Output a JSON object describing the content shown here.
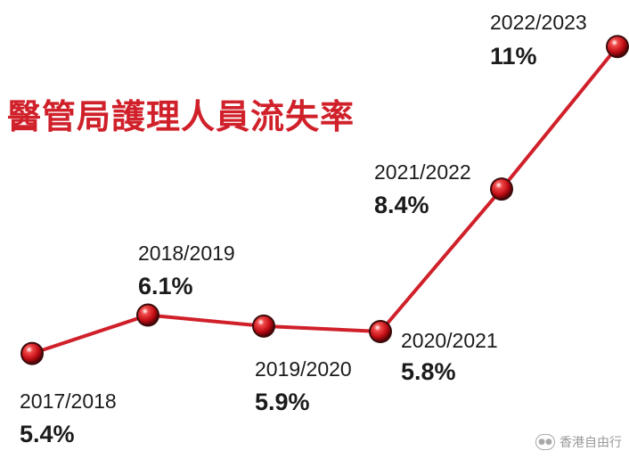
{
  "title": "醫管局護理人員流失率",
  "colors": {
    "line": "#d0202a",
    "marker": "#c8101a",
    "marker_ring": "#3a0a0a"
  },
  "watermark": {
    "text": "香港自由行",
    "icon": "wechat-icon"
  },
  "chart_data": {
    "type": "line",
    "title": "醫管局護理人員流失率",
    "xlabel": "",
    "ylabel": "",
    "grid": false,
    "categories": [
      "2017/2018",
      "2018/2019",
      "2019/2020",
      "2020/2021",
      "2021/2022",
      "2022/2023"
    ],
    "values": [
      5.4,
      6.1,
      5.9,
      5.8,
      8.4,
      11
    ],
    "value_labels": [
      "5.4%",
      "6.1%",
      "5.9%",
      "5.8%",
      "8.4%",
      "11%"
    ]
  }
}
